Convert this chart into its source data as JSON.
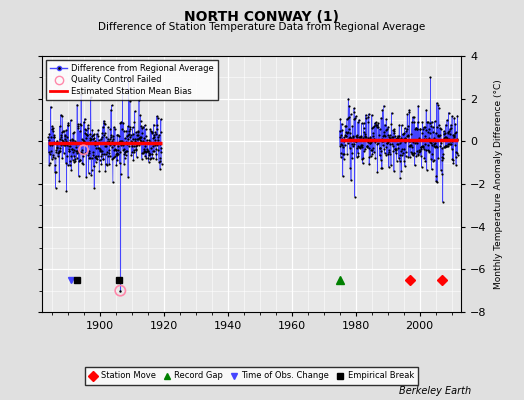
{
  "title": "NORTH CONWAY (1)",
  "subtitle": "Difference of Station Temperature Data from Regional Average",
  "ylabel": "Monthly Temperature Anomaly Difference (°C)",
  "xlabel_credit": "Berkeley Earth",
  "ylim": [
    -8,
    4
  ],
  "yticks": [
    -8,
    -6,
    -4,
    -2,
    0,
    2,
    4
  ],
  "xlim": [
    1882,
    2013
  ],
  "xticks": [
    1900,
    1920,
    1940,
    1960,
    1980,
    2000
  ],
  "bg_color": "#e0e0e0",
  "plot_bg_color": "#e8e8e8",
  "seed": 12,
  "segment1_start": 1884,
  "segment1_end": 1919.5,
  "segment2_start": 1975,
  "segment2_end": 2012,
  "bias1": -0.1,
  "bias2": 0.05,
  "outlier_x": 1906.5,
  "outlier_y": -7.0,
  "outlier_qc_x": 1906.5,
  "outlier_qc_y": -7.0,
  "qc_point2_x": 1895,
  "qc_point2_y": -0.4,
  "spike_x": 1906.5,
  "station_moves": [
    1997,
    2007
  ],
  "record_gap_x": 1975,
  "time_obs_x": 1891,
  "empirical_breaks": [
    1893,
    1906
  ],
  "marker_y": -6.5
}
